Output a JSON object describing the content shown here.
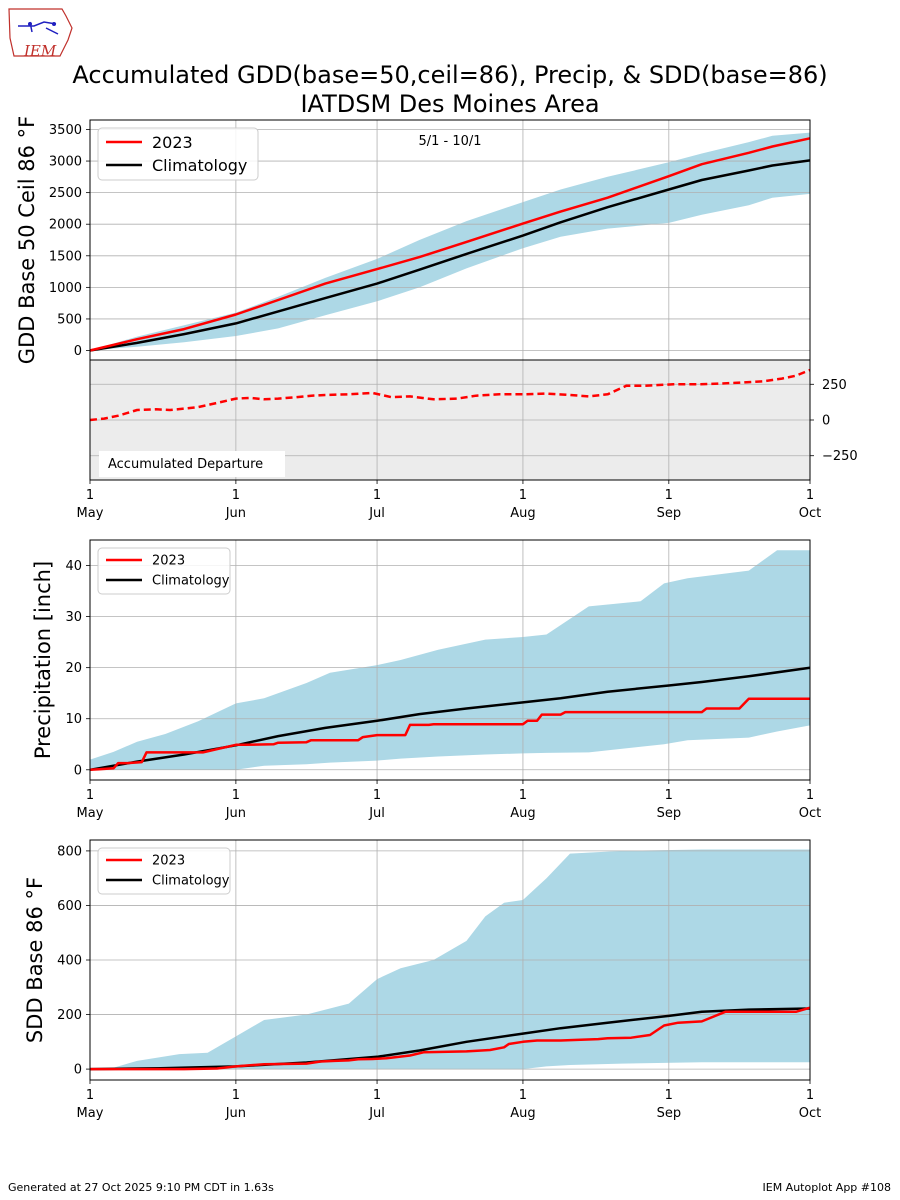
{
  "logo": {
    "text": "IEM"
  },
  "title": {
    "line1": "Accumulated GDD(base=50,ceil=86), Precip, & SDD(base=86)",
    "line2": "IATDSM Des Moines Area"
  },
  "footer": {
    "left": "Generated at 27 Oct 2025 9:10 PM CDT in 1.63s",
    "right": "IEM Autoplot App #108"
  },
  "colors": {
    "observed": "#ff0000",
    "climatology": "#000000",
    "range_band": "#add8e6",
    "departure_bg": "#ececec",
    "grid": "#b0b0b0"
  },
  "chart_data": [
    {
      "id": "gdd",
      "type": "line",
      "ylabel": "GDD Base 50 Ceil 86 °F",
      "annotation": "5/1 - 10/1",
      "legend": {
        "placement": "top-left",
        "entries": [
          "2023",
          "Climatology"
        ]
      },
      "grid": true,
      "ylim": [
        -150,
        3650
      ],
      "yticks": [
        0,
        500,
        1000,
        1500,
        2000,
        2500,
        3000,
        3500
      ],
      "xlim_day": [
        0,
        153
      ],
      "xticks": [
        {
          "day": 0,
          "num": "1",
          "month": "May"
        },
        {
          "day": 31,
          "num": "1",
          "month": "Jun"
        },
        {
          "day": 61,
          "num": "1",
          "month": "Jul"
        },
        {
          "day": 92,
          "num": "1",
          "month": "Aug"
        },
        {
          "day": 123,
          "num": "1",
          "month": "Sep"
        },
        {
          "day": 153,
          "num": "1",
          "month": "Oct"
        }
      ],
      "range_band": {
        "x": [
          0,
          10,
          20,
          31,
          40,
          50,
          61,
          70,
          80,
          92,
          100,
          110,
          123,
          130,
          140,
          145,
          153
        ],
        "lo": [
          0,
          60,
          130,
          230,
          350,
          560,
          780,
          1000,
          1300,
          1620,
          1800,
          1930,
          2020,
          2150,
          2300,
          2420,
          2480
        ],
        "hi": [
          0,
          220,
          400,
          600,
          850,
          1150,
          1450,
          1750,
          2050,
          2350,
          2550,
          2750,
          2980,
          3120,
          3300,
          3400,
          3450
        ]
      },
      "series": [
        {
          "name": "2023",
          "x": [
            0,
            10,
            20,
            31,
            40,
            50,
            61,
            70,
            80,
            92,
            100,
            110,
            123,
            130,
            140,
            145,
            153
          ],
          "y": [
            0,
            180,
            340,
            570,
            800,
            1060,
            1290,
            1480,
            1720,
            2010,
            2200,
            2420,
            2760,
            2950,
            3130,
            3230,
            3360
          ]
        },
        {
          "name": "Climatology",
          "x": [
            0,
            10,
            20,
            31,
            40,
            50,
            61,
            70,
            80,
            92,
            100,
            110,
            123,
            130,
            140,
            145,
            153
          ],
          "y": [
            0,
            120,
            260,
            430,
            620,
            830,
            1060,
            1280,
            1530,
            1820,
            2030,
            2270,
            2550,
            2700,
            2850,
            2930,
            3010
          ]
        }
      ]
    },
    {
      "id": "departure",
      "type": "line",
      "label": "Accumulated Departure",
      "grid": true,
      "ylim": [
        -420,
        420
      ],
      "yticks": [
        -250,
        0,
        250
      ],
      "xlim_day": [
        0,
        153
      ],
      "series": [
        {
          "name": "Accumulated Departure",
          "x": [
            0,
            3,
            6,
            10,
            14,
            17,
            20,
            23,
            27,
            31,
            34,
            37,
            40,
            44,
            47,
            50,
            55,
            60,
            64,
            68,
            73,
            78,
            82,
            87,
            92,
            97,
            102,
            106,
            110,
            114,
            118,
            124,
            129,
            134,
            137,
            143,
            147,
            150,
            153
          ],
          "y": [
            0,
            10,
            30,
            70,
            75,
            70,
            80,
            90,
            120,
            150,
            155,
            145,
            150,
            160,
            170,
            175,
            180,
            190,
            160,
            165,
            145,
            150,
            170,
            180,
            180,
            185,
            175,
            165,
            180,
            240,
            240,
            250,
            250,
            255,
            260,
            270,
            290,
            310,
            350
          ]
        }
      ]
    },
    {
      "id": "precip",
      "type": "line",
      "ylabel": "Precipitation [inch]",
      "legend": {
        "placement": "top-left",
        "entries": [
          "2023",
          "Climatology"
        ]
      },
      "grid": true,
      "ylim": [
        -2,
        45
      ],
      "yticks": [
        0,
        10,
        20,
        30,
        40
      ],
      "xlim_day": [
        0,
        153
      ],
      "range_band": {
        "x": [
          0,
          5,
          10,
          16,
          23,
          31,
          37,
          46,
          51,
          61,
          66,
          74,
          84,
          92,
          97,
          106,
          117,
          122,
          127,
          140,
          146,
          153
        ],
        "lo": [
          0,
          0,
          0,
          0,
          0,
          0,
          0.8,
          1.1,
          1.4,
          1.8,
          2.2,
          2.6,
          3.0,
          3.2,
          3.3,
          3.4,
          4.5,
          5.0,
          5.8,
          6.3,
          7.5,
          8.7
        ],
        "hi": [
          2.0,
          3.5,
          5.5,
          7.0,
          9.5,
          13.0,
          14.0,
          17.0,
          19.0,
          20.5,
          21.5,
          23.5,
          25.5,
          26.0,
          26.5,
          32.0,
          33.0,
          36.5,
          37.5,
          39.0,
          43.0,
          43.0
        ]
      },
      "series": [
        {
          "name": "2023",
          "x": [
            0,
            2,
            5,
            6,
            8,
            11,
            12,
            23,
            24,
            31,
            33,
            39,
            40,
            46,
            47,
            57,
            58,
            61,
            67,
            68,
            72,
            73,
            92,
            93,
            95,
            96,
            100,
            101,
            130,
            131,
            134,
            138,
            140,
            153
          ],
          "y": [
            0,
            0.1,
            0.3,
            1.3,
            1.3,
            1.5,
            3.4,
            3.4,
            3.4,
            4.9,
            4.9,
            5.0,
            5.3,
            5.4,
            5.8,
            5.8,
            6.4,
            6.8,
            6.8,
            8.8,
            8.8,
            8.9,
            8.9,
            9.6,
            9.6,
            10.8,
            10.8,
            11.3,
            11.3,
            12.0,
            12.0,
            12.0,
            13.9,
            13.9
          ]
        },
        {
          "name": "Climatology",
          "x": [
            0,
            10,
            20,
            31,
            40,
            50,
            61,
            70,
            80,
            92,
            100,
            110,
            123,
            130,
            140,
            153
          ],
          "y": [
            0,
            1.6,
            3.0,
            4.8,
            6.6,
            8.2,
            9.6,
            10.9,
            12.0,
            13.2,
            14.0,
            15.3,
            16.5,
            17.2,
            18.3,
            20.0
          ]
        }
      ]
    },
    {
      "id": "sdd",
      "type": "line",
      "ylabel": "SDD Base 86 °F",
      "legend": {
        "placement": "top-left",
        "entries": [
          "2023",
          "Climatology"
        ]
      },
      "grid": true,
      "ylim": [
        -40,
        840
      ],
      "yticks": [
        0,
        200,
        400,
        600,
        800
      ],
      "xlim_day": [
        0,
        153
      ],
      "range_band": {
        "x": [
          0,
          5,
          10,
          19,
          25,
          31,
          37,
          46,
          55,
          61,
          66,
          73,
          80,
          84,
          88,
          92,
          97,
          102,
          113,
          130,
          153
        ],
        "lo": [
          0,
          0,
          0,
          0,
          0,
          0,
          0,
          0,
          0,
          0,
          0,
          0,
          0,
          0,
          0,
          0,
          10,
          15,
          20,
          25,
          25
        ],
        "hi": [
          0,
          5,
          30,
          55,
          60,
          120,
          180,
          200,
          240,
          330,
          370,
          400,
          470,
          560,
          610,
          620,
          700,
          790,
          800,
          805,
          805
        ]
      },
      "series": [
        {
          "name": "2023",
          "x": [
            0,
            10,
            20,
            27,
            31,
            37,
            46,
            49,
            52,
            55,
            57,
            60,
            63,
            68,
            71,
            80,
            85,
            88,
            89,
            92,
            95,
            100,
            105,
            108,
            110,
            115,
            119,
            122,
            125,
            130,
            135,
            140,
            145,
            150,
            153
          ],
          "y": [
            0,
            0,
            0,
            2,
            10,
            18,
            20,
            28,
            30,
            32,
            36,
            37,
            40,
            50,
            62,
            65,
            70,
            80,
            92,
            100,
            105,
            105,
            108,
            110,
            113,
            115,
            125,
            160,
            170,
            175,
            210,
            210,
            210,
            210,
            225
          ]
        },
        {
          "name": "Climatology",
          "x": [
            0,
            15,
            31,
            46,
            61,
            70,
            80,
            92,
            100,
            110,
            123,
            130,
            140,
            153
          ],
          "y": [
            0,
            3,
            10,
            24,
            45,
            68,
            100,
            130,
            150,
            170,
            195,
            210,
            218,
            222
          ]
        }
      ]
    }
  ]
}
